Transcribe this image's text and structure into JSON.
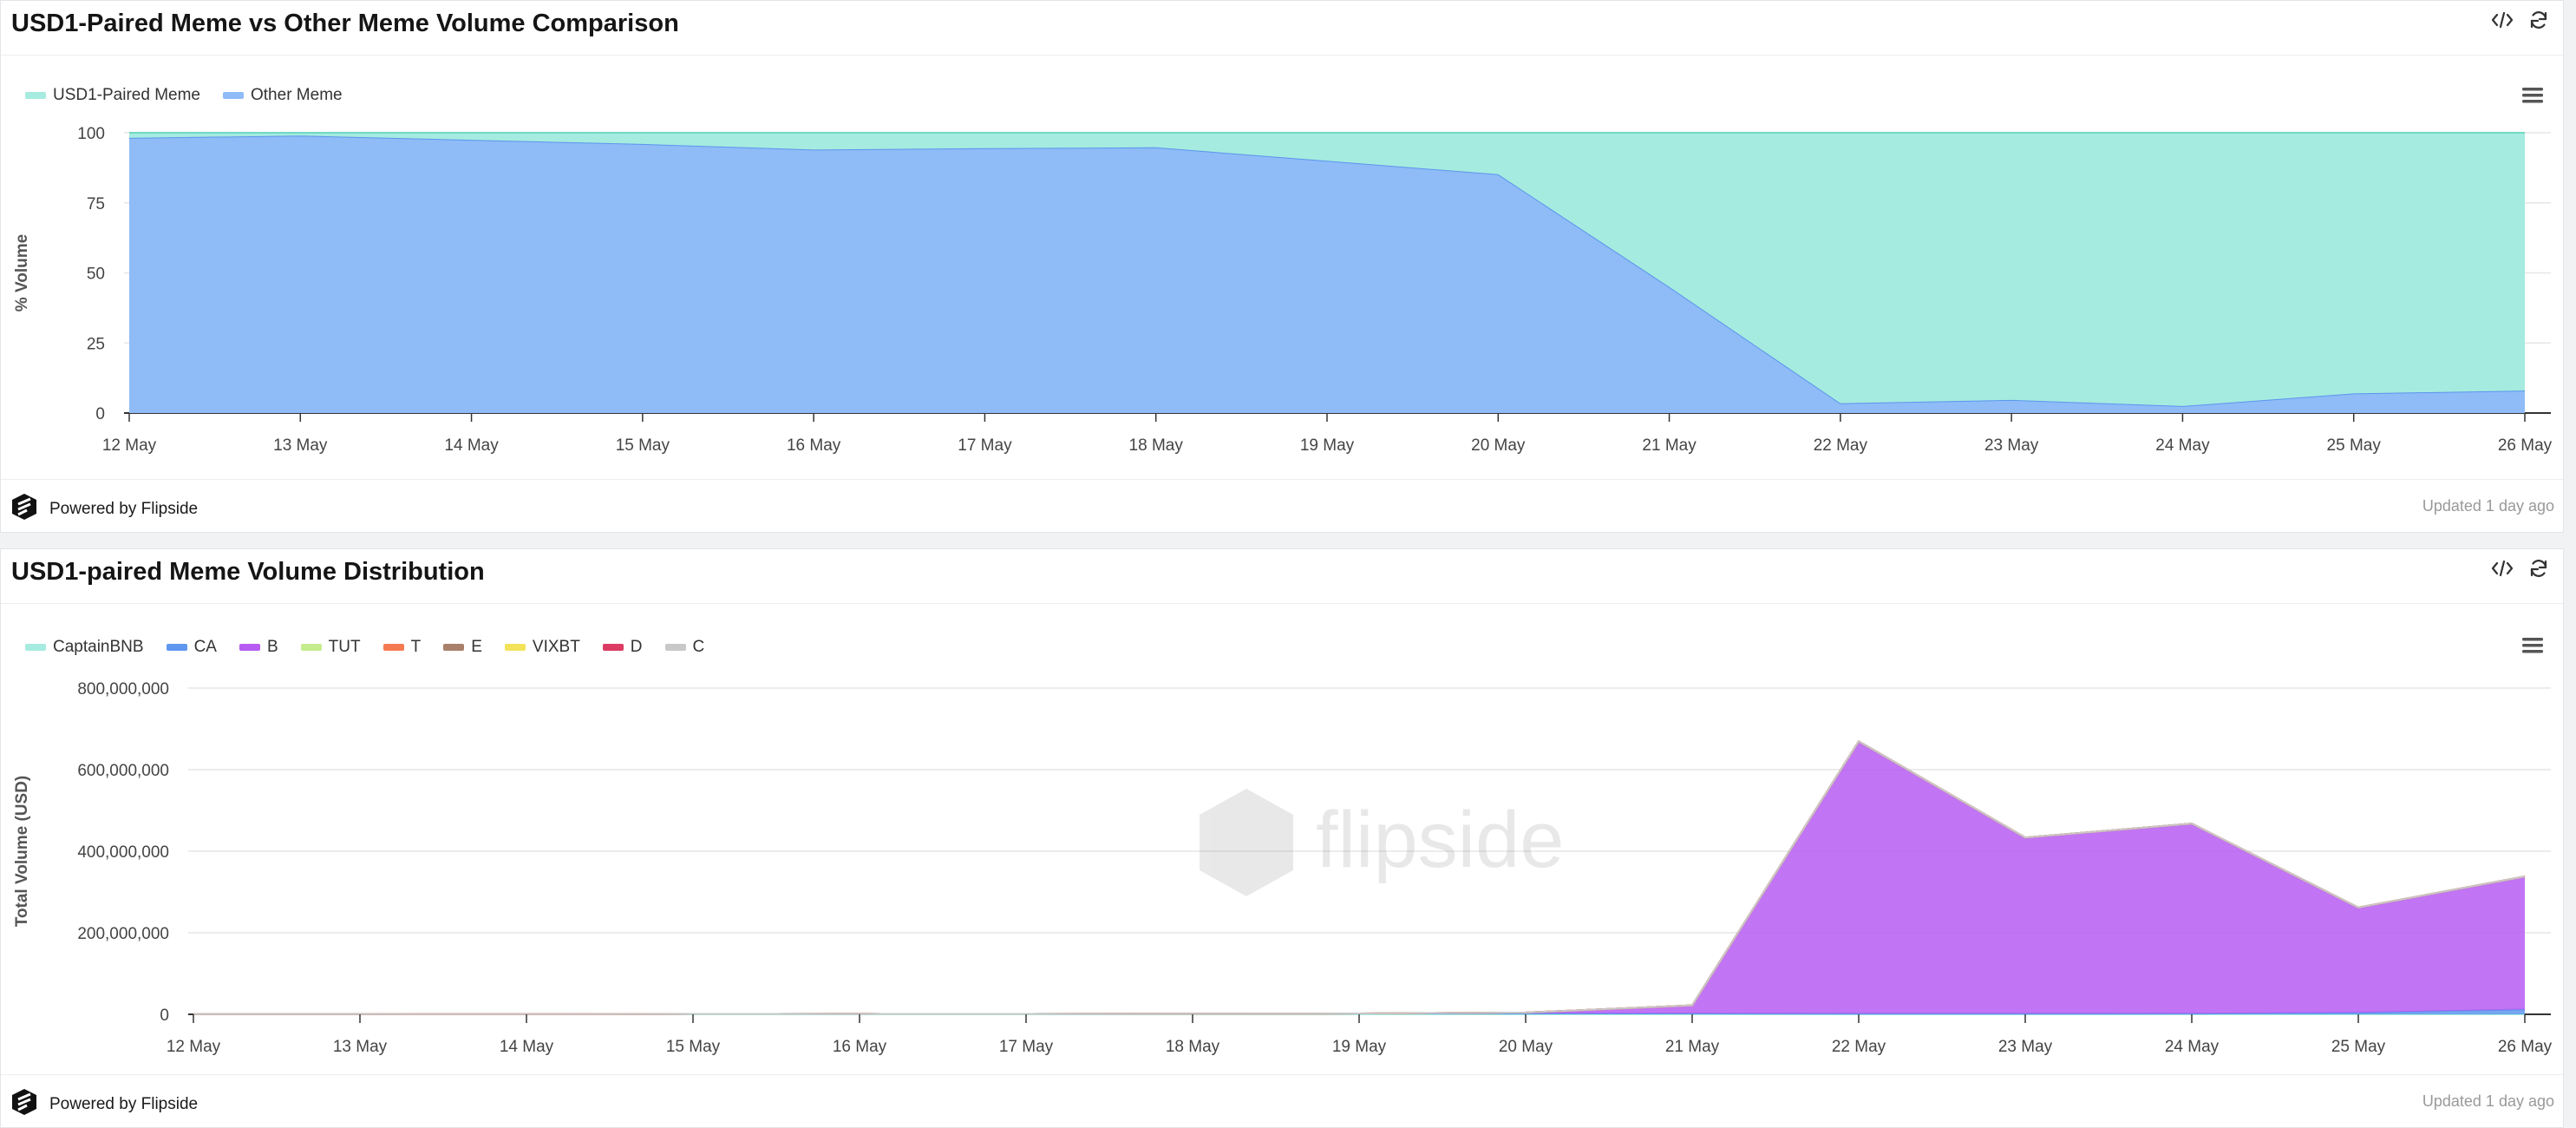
{
  "panels": [
    {
      "title": "USD1-Paired Meme vs Other Meme Volume Comparison",
      "powered_by": "Powered by Flipside",
      "updated": "Updated 1 day ago",
      "watermark": "flipside",
      "icons": [
        "code-icon",
        "refresh-icon",
        "menu-icon",
        "flipside-logo-icon"
      ]
    },
    {
      "title": "USD1-paired Meme Volume Distribution",
      "powered_by": "Powered by Flipside",
      "updated": "Updated 1 day ago",
      "watermark": "flipside",
      "icons": [
        "code-icon",
        "refresh-icon",
        "menu-icon",
        "flipside-logo-icon"
      ]
    }
  ],
  "chart_data": [
    {
      "type": "area",
      "stacked": "percent",
      "x": [
        "12 May",
        "13 May",
        "14 May",
        "15 May",
        "16 May",
        "17 May",
        "18 May",
        "19 May",
        "20 May",
        "21 May",
        "22 May",
        "23 May",
        "24 May",
        "25 May",
        "26 May"
      ],
      "series": [
        {
          "name": "USD1-Paired Meme",
          "color": "#a6ebdf",
          "line_color": "#6fd9c4",
          "values": [
            1.8,
            1.0,
            2.5,
            4.0,
            6.0,
            5.5,
            5.2,
            10.0,
            14.8,
            55,
            96.5,
            95.3,
            97.5,
            93.0,
            92.0
          ]
        },
        {
          "name": "Other Meme",
          "color": "#8fbbf7",
          "line_color": "#5a96ee",
          "values": [
            98.2,
            99.0,
            97.5,
            96.0,
            94.0,
            94.5,
            94.8,
            90.0,
            85.2,
            45,
            3.5,
            4.7,
            2.5,
            7.0,
            8.0
          ]
        }
      ],
      "ylabel": "% Volume",
      "yticks": [
        "0",
        "25",
        "50",
        "75",
        "100"
      ],
      "ylim": [
        0,
        100
      ],
      "grid": true,
      "legend": "top-left"
    },
    {
      "type": "area",
      "stacked": true,
      "x": [
        "12 May",
        "13 May",
        "14 May",
        "15 May",
        "16 May",
        "17 May",
        "18 May",
        "19 May",
        "20 May",
        "21 May",
        "22 May",
        "23 May",
        "24 May",
        "25 May",
        "26 May"
      ],
      "series": [
        {
          "name": "CaptainBNB",
          "color": "#a6ebdf",
          "values": [
            0,
            0,
            0,
            0,
            0,
            0,
            0,
            0,
            0,
            0,
            0,
            0,
            0,
            0,
            0
          ]
        },
        {
          "name": "CA",
          "color": "#5f97ef",
          "values": [
            800000,
            700000,
            600000,
            1000000,
            1200000,
            1000000,
            1500000,
            2000000,
            2500000,
            2000000,
            1500000,
            1500000,
            1800000,
            4000000,
            12000000
          ]
        },
        {
          "name": "B",
          "color": "#b65cf2",
          "values": [
            0,
            0,
            0,
            0,
            0,
            0,
            0,
            0,
            2000000,
            20000000,
            668000000,
            432000000,
            466000000,
            258000000,
            326000000
          ]
        },
        {
          "name": "TUT",
          "color": "#c6ec8d",
          "values": [
            0,
            0,
            0,
            0,
            0,
            0,
            0,
            0,
            0,
            0,
            0,
            0,
            0,
            0,
            0
          ]
        },
        {
          "name": "T",
          "color": "#f57a52",
          "values": [
            0,
            0,
            0,
            0,
            0,
            0,
            0,
            0,
            0,
            0,
            0,
            0,
            0,
            0,
            0
          ]
        },
        {
          "name": "E",
          "color": "#a8806b",
          "values": [
            0,
            0,
            0,
            0,
            0,
            0,
            0,
            0,
            0,
            0,
            0,
            0,
            0,
            0,
            0
          ]
        },
        {
          "name": "VIXBT",
          "color": "#f2e35a",
          "values": [
            0,
            0,
            0,
            0,
            0,
            0,
            0,
            0,
            0,
            0,
            0,
            0,
            0,
            0,
            0
          ]
        },
        {
          "name": "D",
          "color": "#dc3b64",
          "values": [
            0,
            0,
            0,
            0,
            0,
            0,
            0,
            0,
            0,
            0,
            0,
            0,
            0,
            0,
            0
          ]
        },
        {
          "name": "C",
          "color": "#c8c8c8",
          "values": [
            0,
            0,
            0,
            0,
            0,
            0,
            0,
            0,
            0,
            0,
            0,
            0,
            0,
            0,
            0
          ]
        }
      ],
      "ylabel": "Total Volume (USD)",
      "yticks": [
        "0",
        "200,000,000",
        "400,000,000",
        "600,000,000",
        "800,000,000"
      ],
      "ylim": [
        0,
        800000000
      ],
      "grid": true,
      "legend": "top-left"
    }
  ]
}
